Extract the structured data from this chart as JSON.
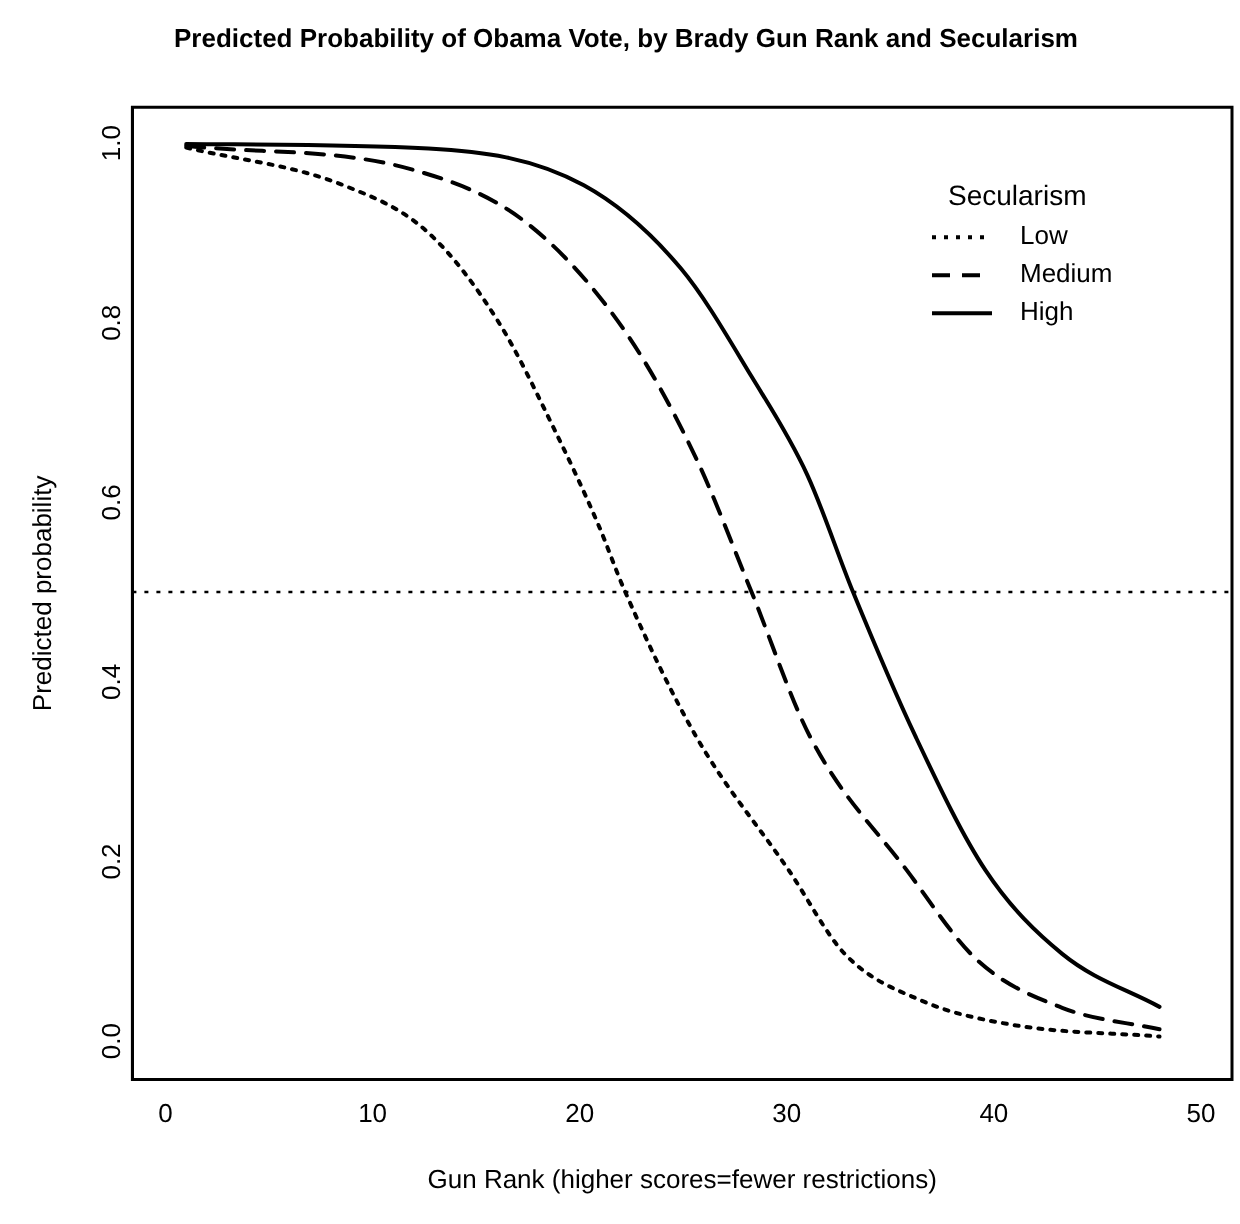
{
  "chart_data": {
    "type": "line",
    "title": "Predicted Probability of Obama Vote, by Brady Gun Rank and Secularism",
    "xlabel": "Gun Rank (higher scores=fewer restrictions)",
    "ylabel": "Predicted probability",
    "legend_title": "Secularism",
    "legend": "top right",
    "grid": false,
    "marker": "none",
    "xlim": [
      -1.6,
      51.5
    ],
    "xticks": [
      0,
      10,
      20,
      30,
      40,
      50
    ],
    "ylim": [
      -0.043,
      1.04
    ],
    "yticks": [
      {
        "value": 0,
        "label": "0.0"
      },
      {
        "value": 0.2,
        "label": "0.2"
      },
      {
        "value": 0.4,
        "label": "0.4"
      },
      {
        "value": 0.6,
        "label": "0.6"
      },
      {
        "value": 0.8,
        "label": "0.8"
      },
      {
        "value": 1,
        "label": "1.0"
      }
    ],
    "ref_lines": [
      {
        "axis": "y",
        "value": 0.5,
        "line_style": "dotted",
        "color": "#000000"
      }
    ],
    "series": [
      {
        "name": "Low",
        "color": "#000000",
        "line_style": "dotted",
        "x": [
          1,
          8.6,
          12.7,
          16.1,
          18.8,
          20.9,
          22.2,
          25.6,
          30.1,
          32.8,
          36.5,
          40.9,
          48
        ],
        "values": [
          0.995,
          0.953,
          0.9,
          0.8,
          0.68,
          0.575,
          0.5,
          0.34,
          0.19,
          0.097,
          0.045,
          0.018,
          0.005
        ]
      },
      {
        "name": "Medium",
        "color": "#000000",
        "line_style": "dashed",
        "x": [
          1,
          12,
          17.5,
          22.2,
          25.6,
          28.3,
          31.1,
          35.8,
          39.2,
          43.3,
          48
        ],
        "values": [
          0.997,
          0.97,
          0.91,
          0.79,
          0.65,
          0.5,
          0.34,
          0.19,
          0.09,
          0.037,
          0.013
        ]
      },
      {
        "name": "High",
        "color": "#000000",
        "line_style": "solid",
        "x": [
          1,
          12.7,
          20.2,
          24.9,
          28.3,
          31,
          33.2,
          36.2,
          39.6,
          43.3,
          48
        ],
        "values": [
          0.999,
          0.994,
          0.953,
          0.86,
          0.74,
          0.63,
          0.5,
          0.34,
          0.19,
          0.097,
          0.038
        ]
      }
    ]
  }
}
